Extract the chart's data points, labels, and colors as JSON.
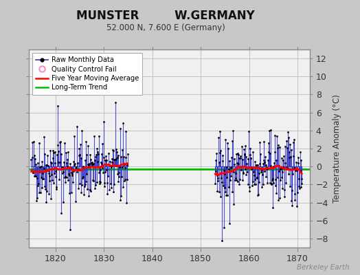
{
  "title": "MUNSTER         W.GERMANY",
  "subtitle": "52.000 N, 7.600 E (Germany)",
  "ylabel": "Temperature Anomaly (°C)",
  "bg_color": "#c8c8c8",
  "plot_bg": "#f0f0f0",
  "ylim": [
    -9,
    13
  ],
  "yticks": [
    -8,
    -6,
    -4,
    -2,
    0,
    2,
    4,
    6,
    8,
    10,
    12
  ],
  "xlim": [
    1814.5,
    1872.5
  ],
  "xticks": [
    1820,
    1830,
    1840,
    1850,
    1860,
    1870
  ],
  "long_term_trend_y": -0.3,
  "line_color": "#3333cc",
  "dot_color": "#000000",
  "moving_avg_color": "#ff0000",
  "trend_color": "#00bb00",
  "grid_color": "#bbbbbb",
  "watermark": "Berkeley Earth",
  "segment1_start": 1815,
  "segment1_end": 1835,
  "segment2_start": 1853,
  "segment2_end": 1871
}
